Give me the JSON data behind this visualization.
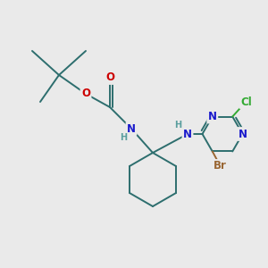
{
  "bg_color": "#eaeaea",
  "bond_color": "#2d6e6e",
  "bond_width": 1.4,
  "atom_colors": {
    "N": "#1a1acc",
    "O": "#cc0000",
    "Br": "#996633",
    "Cl": "#33aa33",
    "H": "#5a9e9e"
  },
  "font_size_atom": 8.5,
  "font_size_H": 7.0,
  "font_size_Br": 8.5,
  "font_size_Cl": 8.5
}
